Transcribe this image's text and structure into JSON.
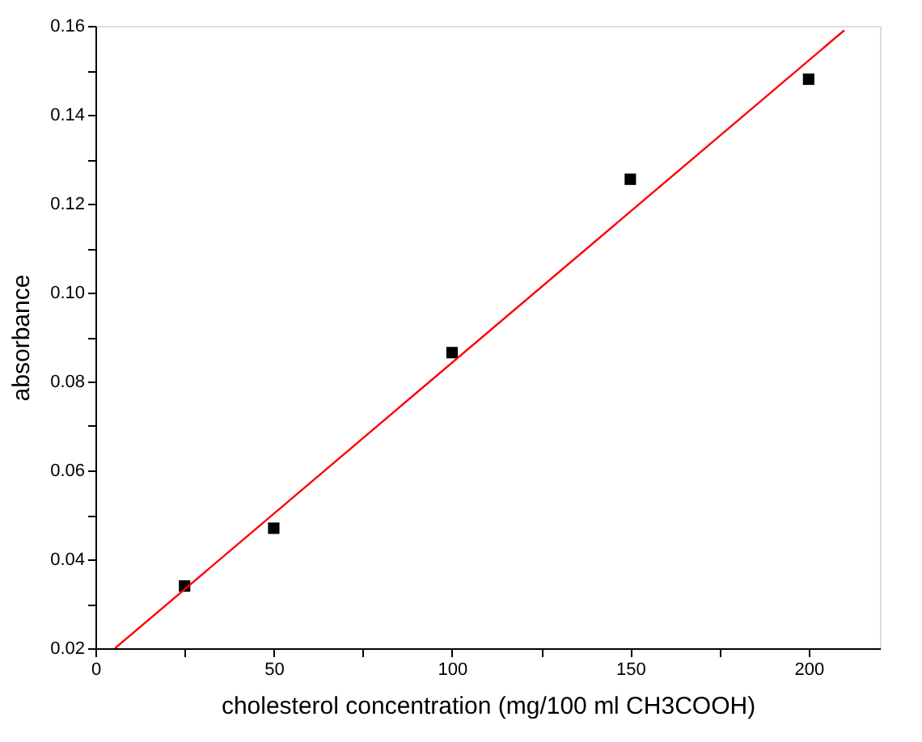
{
  "chart_data": {
    "type": "scatter",
    "xlabel": "cholesterol concentration (mg/100 ml CH3COOH)",
    "ylabel": "absorbance",
    "xlim": [
      0,
      220
    ],
    "ylim": [
      0.02,
      0.16
    ],
    "xticks": [
      0,
      {
        "value": 25,
        "label": null
      },
      50,
      {
        "value": 75,
        "label": null
      },
      100,
      {
        "value": 125,
        "label": null
      },
      150,
      {
        "value": 175,
        "label": null
      },
      200
    ],
    "yticks": [
      0.02,
      {
        "value": 0.03,
        "label": null
      },
      0.04,
      {
        "value": 0.05,
        "label": null
      },
      0.06,
      {
        "value": 0.07,
        "label": null
      },
      0.08,
      {
        "value": 0.09,
        "label": null
      },
      {
        "value": 0.1,
        "label": "0.10"
      },
      {
        "value": 0.11,
        "label": null
      },
      0.12,
      {
        "value": 0.13,
        "label": null
      },
      0.14,
      {
        "value": 0.15,
        "label": null
      },
      0.16
    ],
    "grid": false,
    "marker": "square",
    "series": [
      {
        "type": "scatter",
        "color": "#000000",
        "x": [
          25,
          50,
          100,
          150,
          200
        ],
        "values": [
          0.034,
          0.047,
          0.0865,
          0.1255,
          0.148
        ]
      },
      {
        "type": "line",
        "marker": "none",
        "color": "#ff0000",
        "x": [
          5.5,
          210
        ],
        "values": [
          0.02,
          0.159
        ]
      }
    ]
  }
}
